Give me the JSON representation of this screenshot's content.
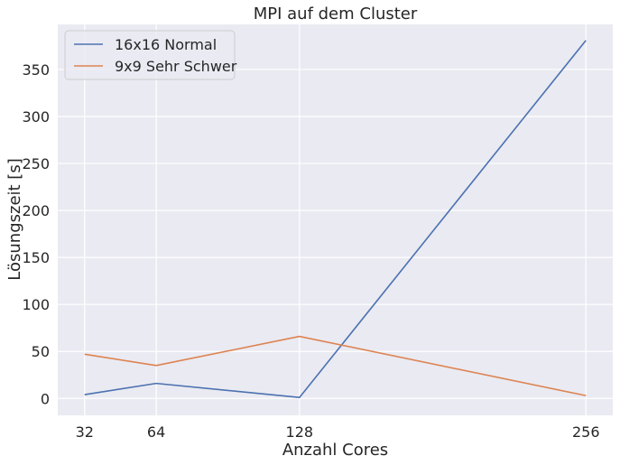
{
  "chart_data": {
    "type": "line",
    "title": "MPI auf dem Cluster",
    "xlabel": "Anzahl Cores",
    "ylabel": "Lösungszeit [s]",
    "x": [
      32,
      64,
      128,
      256
    ],
    "x_ticks": [
      32,
      64,
      128,
      256
    ],
    "y_ticks": [
      0,
      50,
      100,
      150,
      200,
      250,
      300,
      350
    ],
    "xlim": [
      20,
      268
    ],
    "ylim": [
      -18,
      398
    ],
    "grid": true,
    "legend_position": "top-left",
    "background_color": "#eaeaf2",
    "grid_color": "#ffffff",
    "series": [
      {
        "name": "16x16 Normal",
        "color": "#4c72b0",
        "values": [
          4,
          16,
          1,
          381
        ]
      },
      {
        "name": "9x9 Sehr Schwer",
        "color": "#dd8452",
        "values": [
          47,
          35,
          66,
          3
        ]
      }
    ]
  }
}
